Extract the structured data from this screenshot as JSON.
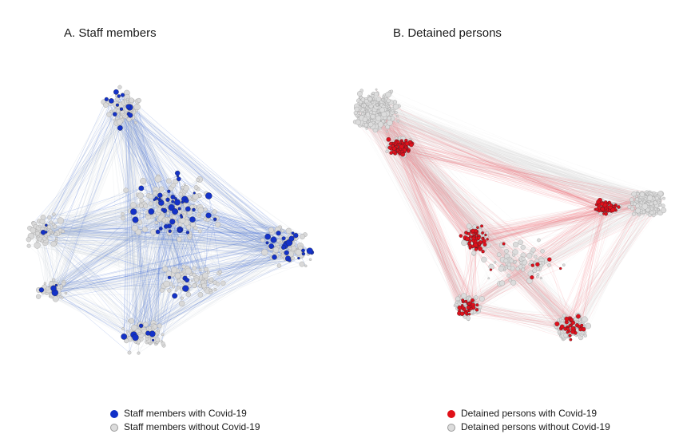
{
  "panels": [
    {
      "id": "a",
      "title": "A. Staff members",
      "colors": {
        "positive": "#1432c8",
        "negative": "#d9d9d9",
        "edge_positive": "#4a72d8",
        "edge_negative": "#c9ced8"
      },
      "legend": [
        {
          "label": "Staff members with Covid-19",
          "color": "#1030c8"
        },
        {
          "label": "Staff members without Covid-19",
          "color": "#dcdcdc"
        }
      ]
    },
    {
      "id": "b",
      "title": "B. Detained persons",
      "colors": {
        "positive": "#e0101c",
        "negative": "#dcdcdc",
        "edge_positive": "#f0707a",
        "edge_negative": "#d6d6d6"
      },
      "legend": [
        {
          "label": "Detained persons with Covid-19",
          "color": "#e01018"
        },
        {
          "label": "Detained persons without Covid-19",
          "color": "#dcdcdc"
        }
      ]
    }
  ]
}
